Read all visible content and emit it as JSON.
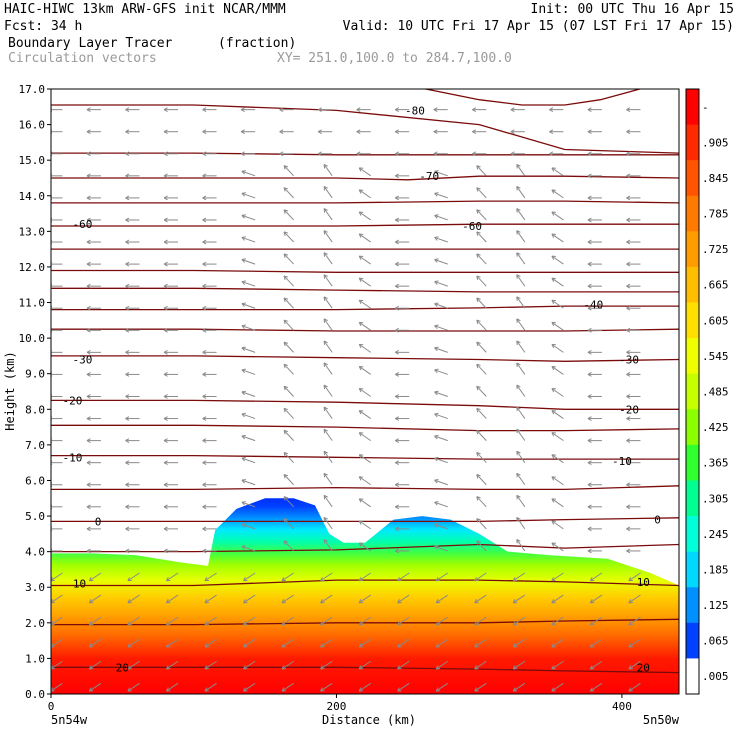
{
  "header": {
    "line1_left": "HAIC-HIWC 13km ARW-GFS init   NCAR/MMM",
    "line1_right": "Init: 00 UTC Thu 16 Apr 15",
    "line2_left": "Fcst:   34 h",
    "line2_right": "Valid: 10 UTC Fri 17 Apr 15 (07 LST Fri 17 Apr 15)",
    "field_name": "Boundary Layer Tracer",
    "field_units": "(fraction)",
    "vector_label": "Circulation vectors",
    "xy_label": "XY= 251.0,100.0 to 284.7,100.0"
  },
  "colors": {
    "contour": "#7b0b0b",
    "vector": "#8a8a8a",
    "vector_label": "#9a9a9a",
    "text": "#000000"
  },
  "chart_data": {
    "type": "heatmap",
    "xlabel": "Distance (km)",
    "ylabel": "Height (km)",
    "xlim": [
      0,
      440
    ],
    "ylim": [
      0,
      17
    ],
    "x_ticks": [
      0,
      200,
      400
    ],
    "y_ticks": [
      "0.0",
      "1.0",
      "2.0",
      "3.0",
      "4.0",
      "5.0",
      "6.0",
      "7.0",
      "8.0",
      "9.0",
      "10.0",
      "11.0",
      "12.0",
      "13.0",
      "14.0",
      "15.0",
      "16.0",
      "17.0"
    ],
    "x_endpoints": {
      "left": "5n54w",
      "right": "5n50w"
    },
    "colorbar": {
      "labels": [
        "-",
        ".905",
        ".845",
        ".785",
        ".725",
        ".665",
        ".605",
        ".545",
        ".485",
        ".425",
        ".365",
        ".305",
        ".245",
        ".185",
        ".125",
        ".065",
        ".005"
      ],
      "colors": [
        "#ff0000",
        "#ff2a00",
        "#ff5400",
        "#ff7a00",
        "#ff9c00",
        "#ffbe00",
        "#ffe000",
        "#f0ff00",
        "#c8ff00",
        "#8cff00",
        "#30ff30",
        "#00ff90",
        "#00ffd8",
        "#00d8ff",
        "#0090ff",
        "#0040ff",
        "#ffffff"
      ]
    },
    "tracer_top_km": [
      [
        0,
        3.95
      ],
      [
        30,
        3.95
      ],
      [
        60,
        3.9
      ],
      [
        90,
        3.7
      ],
      [
        110,
        3.6
      ],
      [
        115,
        4.6
      ],
      [
        130,
        5.2
      ],
      [
        150,
        5.5
      ],
      [
        170,
        5.5
      ],
      [
        185,
        5.3
      ],
      [
        195,
        4.5
      ],
      [
        205,
        4.25
      ],
      [
        220,
        4.25
      ],
      [
        240,
        4.9
      ],
      [
        260,
        5.0
      ],
      [
        280,
        4.9
      ],
      [
        300,
        4.5
      ],
      [
        320,
        4.0
      ],
      [
        350,
        3.9
      ],
      [
        390,
        3.8
      ],
      [
        420,
        3.4
      ],
      [
        440,
        3.05
      ]
    ],
    "temperature_contours": [
      {
        "label": "-80",
        "x": [
          0,
          40,
          120,
          200,
          250,
          300,
          330,
          360,
          385,
          440
        ],
        "y": [
          17.3,
          17.3,
          17.3,
          17.3,
          17.1,
          16.7,
          16.55,
          16.55,
          16.7,
          17.3
        ]
      },
      {
        "label": "-70",
        "x": [
          0,
          100,
          200,
          250,
          300,
          360,
          440
        ],
        "y": [
          14.5,
          14.5,
          14.5,
          14.45,
          14.55,
          14.55,
          14.5
        ]
      },
      {
        "label": "-60",
        "x": [
          0,
          100,
          200,
          300,
          360,
          440
        ],
        "y": [
          13.15,
          13.15,
          13.15,
          13.2,
          13.2,
          13.2
        ]
      },
      {
        "label": "-40",
        "x": [
          0,
          100,
          200,
          300,
          360,
          440
        ],
        "y": [
          10.8,
          10.8,
          10.8,
          10.85,
          10.9,
          10.9
        ]
      },
      {
        "label": "-30",
        "x": [
          0,
          100,
          200,
          300,
          360,
          440
        ],
        "y": [
          9.5,
          9.5,
          9.45,
          9.4,
          9.35,
          9.4
        ]
      },
      {
        "label": "-20",
        "x": [
          0,
          100,
          200,
          300,
          360,
          440
        ],
        "y": [
          8.25,
          8.25,
          8.2,
          8.1,
          8.0,
          8.0
        ]
      },
      {
        "label": "-10",
        "x": [
          0,
          100,
          200,
          300,
          360,
          440
        ],
        "y": [
          6.7,
          6.7,
          6.65,
          6.6,
          6.6,
          6.6
        ]
      },
      {
        "label": "0",
        "x": [
          0,
          100,
          200,
          300,
          360,
          440
        ],
        "y": [
          4.85,
          4.85,
          4.85,
          4.85,
          4.9,
          4.95
        ]
      },
      {
        "label": "10",
        "x": [
          0,
          100,
          200,
          300,
          360,
          440
        ],
        "y": [
          3.05,
          3.05,
          3.2,
          3.2,
          3.15,
          3.05
        ]
      },
      {
        "label": "20",
        "x": [
          0,
          100,
          200,
          300,
          360,
          440
        ],
        "y": [
          0.75,
          0.75,
          0.75,
          0.7,
          0.65,
          0.6
        ]
      }
    ],
    "contour_labels": [
      {
        "text": "-80",
        "x": 255,
        "y": 16.4
      },
      {
        "text": "-70",
        "x": 265,
        "y": 14.55
      },
      {
        "text": "-60",
        "x": 22,
        "y": 13.2
      },
      {
        "text": "-60",
        "x": 295,
        "y": 13.15
      },
      {
        "text": "-40",
        "x": 380,
        "y": 10.95
      },
      {
        "text": "-30",
        "x": 22,
        "y": 9.4
      },
      {
        "text": "-30",
        "x": 405,
        "y": 9.4
      },
      {
        "text": "-20",
        "x": 15,
        "y": 8.25
      },
      {
        "text": "-20",
        "x": 405,
        "y": 8.0
      },
      {
        "text": "-10",
        "x": 15,
        "y": 6.65
      },
      {
        "text": "-10",
        "x": 400,
        "y": 6.55
      },
      {
        "text": "0",
        "x": 33,
        "y": 4.85
      },
      {
        "text": "0",
        "x": 425,
        "y": 4.9
      },
      {
        "text": "10",
        "x": 20,
        "y": 3.1
      },
      {
        "text": "10",
        "x": 415,
        "y": 3.15
      },
      {
        "text": "20",
        "x": 50,
        "y": 0.75
      },
      {
        "text": "20",
        "x": 415,
        "y": 0.75
      }
    ],
    "extra_contours": [
      {
        "x": [
          0,
          100,
          200,
          300,
          360,
          440
        ],
        "y": [
          16.55,
          16.55,
          16.4,
          16.0,
          15.3,
          15.2
        ]
      },
      {
        "x": [
          0,
          100,
          200,
          300,
          360,
          440
        ],
        "y": [
          15.2,
          15.2,
          15.15,
          15.15,
          15.15,
          15.15
        ]
      },
      {
        "x": [
          0,
          100,
          200,
          300,
          360,
          440
        ],
        "y": [
          13.8,
          13.8,
          13.8,
          13.85,
          13.85,
          13.8
        ]
      },
      {
        "x": [
          0,
          100,
          200,
          300,
          360,
          440
        ],
        "y": [
          12.5,
          12.5,
          12.5,
          12.5,
          12.5,
          12.5
        ]
      },
      {
        "x": [
          0,
          100,
          200,
          300,
          360,
          440
        ],
        "y": [
          11.9,
          11.9,
          11.85,
          11.85,
          11.85,
          11.85
        ]
      },
      {
        "x": [
          0,
          100,
          200,
          300,
          360,
          440
        ],
        "y": [
          11.4,
          11.4,
          11.35,
          11.3,
          11.3,
          11.3
        ]
      },
      {
        "x": [
          0,
          100,
          200,
          300,
          360,
          440
        ],
        "y": [
          10.25,
          10.25,
          10.2,
          10.2,
          10.2,
          10.25
        ]
      },
      {
        "x": [
          0,
          100,
          200,
          300,
          360,
          440
        ],
        "y": [
          7.55,
          7.55,
          7.5,
          7.4,
          7.4,
          7.45
        ]
      },
      {
        "x": [
          0,
          100,
          200,
          300,
          360,
          440
        ],
        "y": [
          5.75,
          5.75,
          5.8,
          5.75,
          5.75,
          5.85
        ]
      },
      {
        "x": [
          0,
          100,
          200,
          300,
          360,
          440
        ],
        "y": [
          4.0,
          4.0,
          4.05,
          4.2,
          4.1,
          4.2
        ]
      },
      {
        "x": [
          0,
          100,
          200,
          300,
          360,
          440
        ],
        "y": [
          1.95,
          1.95,
          2.0,
          2.0,
          2.05,
          2.1
        ]
      }
    ],
    "vector_grid": {
      "x_spacing_km": 27,
      "y_spacing_km": 0.62,
      "prevailing": "westward (right-to-left)",
      "updraft_x_km": [
        190,
        325
      ]
    }
  }
}
